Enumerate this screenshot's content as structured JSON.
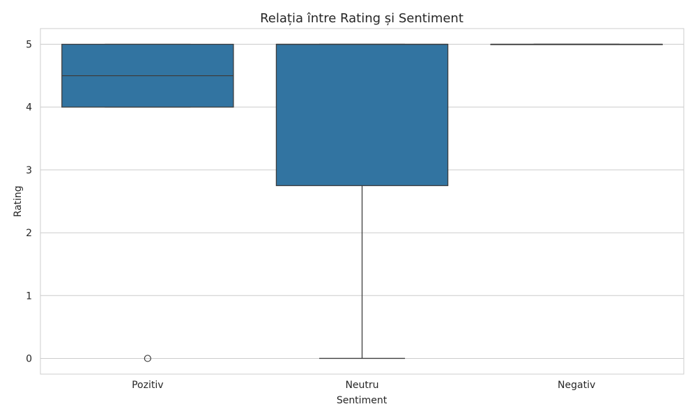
{
  "chart_data": {
    "type": "box",
    "title": "Relația între Rating și Sentiment",
    "xlabel": "Sentiment",
    "ylabel": "Rating",
    "ylim": [
      -0.25,
      5.25
    ],
    "yticks": [
      "0",
      "1",
      "2",
      "3",
      "4",
      "5"
    ],
    "grid": true,
    "box_color": "#3274a1",
    "line_color": "#3d3d3d",
    "categories": [
      "Pozitiv",
      "Neutru",
      "Negativ"
    ],
    "boxes": [
      {
        "category": "Pozitiv",
        "whisker_low": 4,
        "q1": 4,
        "median": 4.5,
        "q3": 5,
        "whisker_high": 5,
        "outliers": [
          0
        ]
      },
      {
        "category": "Neutru",
        "whisker_low": 0,
        "q1": 2.75,
        "median": 5,
        "q3": 5,
        "whisker_high": 5,
        "outliers": []
      },
      {
        "category": "Negativ",
        "whisker_low": 5,
        "q1": 5,
        "median": 5,
        "q3": 5,
        "whisker_high": 5,
        "outliers": []
      }
    ]
  }
}
